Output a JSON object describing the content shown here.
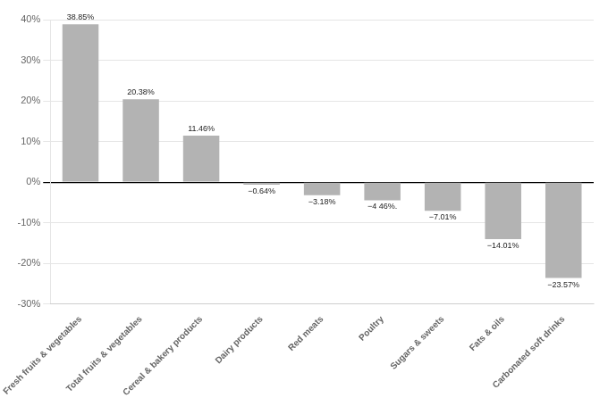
{
  "chart_data": {
    "type": "bar",
    "categories": [
      "Fresh fruits & vegetables",
      "Total fruits & vegetables",
      "Cereal & bakery products",
      "Dairy products",
      "Red meats",
      "Poultry",
      "Sugars & sweets",
      "Fats & oils",
      "Carbonated soft drinks"
    ],
    "values": [
      38.85,
      20.38,
      11.46,
      -0.64,
      -3.18,
      -4.46,
      -7.01,
      -14.01,
      -23.57
    ],
    "value_labels": [
      "38.85%",
      "20.38%",
      "11.46%",
      "−0.64%",
      "−3.18%",
      "−4 46%.",
      "−7.01%",
      "−14.01%",
      "−23.57%"
    ],
    "color": "#b3b3b3",
    "ylim": [
      -30,
      40
    ],
    "yticks": [
      {
        "value": -30,
        "label": "-30%"
      },
      {
        "value": -20,
        "label": "-20%"
      },
      {
        "value": -10,
        "label": "-10%"
      },
      {
        "value": 0,
        "label": "0%"
      },
      {
        "value": 10,
        "label": "10%"
      },
      {
        "value": 20,
        "label": "20%"
      },
      {
        "value": 30,
        "label": "30%"
      },
      {
        "value": 40,
        "label": "40%"
      }
    ],
    "grid": true,
    "data_labels": true
  }
}
